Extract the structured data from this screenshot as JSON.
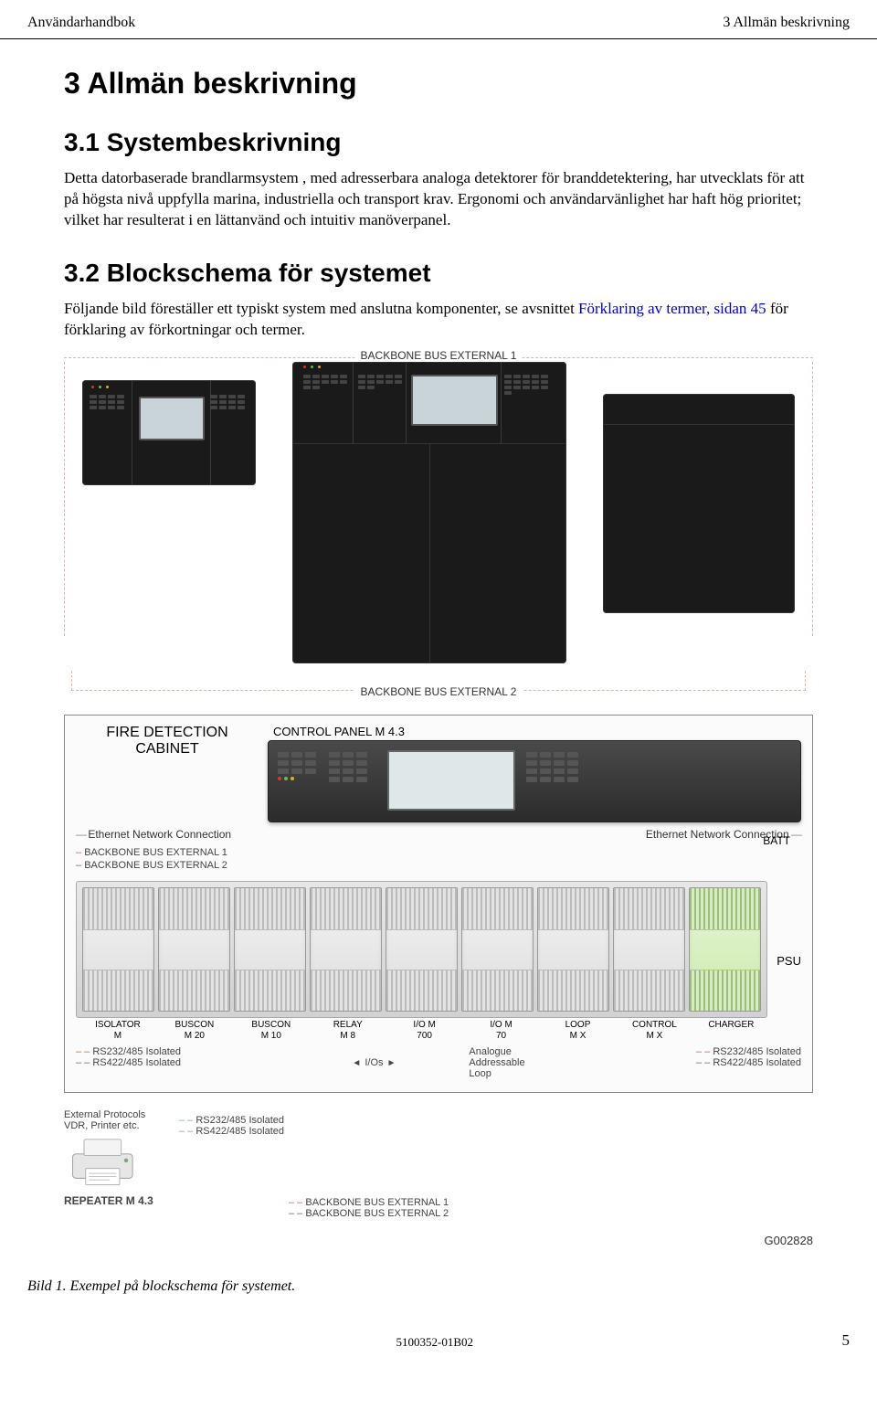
{
  "header": {
    "left": "Användarhandbok",
    "right": "3 Allmän beskrivning"
  },
  "chapter": {
    "title": "3 Allmän beskrivning"
  },
  "section31": {
    "title": "3.1 Systembeskrivning",
    "paragraph": "Detta datorbaserade brandlarmsystem , med adresserbara analoga detektorer för branddetektering, har utvecklats för att på högsta nivå uppfylla marina, industriella och transport krav. Ergonomi och användarvänlighet har haft hög prioritet; vilket har resulterat i en lättanvänd och intuitiv manöverpanel."
  },
  "section32": {
    "title": "3.2 Blockschema för systemet",
    "intro_pre": "Följande bild föreställer ett typiskt system med anslutna komponenter, se avsnittet ",
    "intro_link": "Förklaring av termer, sidan 45",
    "intro_post": " för förklaring av förkortningar och termer."
  },
  "diagram": {
    "backbone_top": "BACKBONE BUS EXTERNAL 1",
    "backbone_bottom": "BACKBONE BUS EXTERNAL 2",
    "fdc_title_l1": "FIRE DETECTION",
    "fdc_title_l2": "CABINET",
    "control_panel_label": "CONTROL PANEL M 4.3",
    "ethernet_left": "Ethernet Network Connection",
    "ethernet_right": "Ethernet Network Connection",
    "batt": "BATT",
    "bb_ext_left_1": "BACKBONE BUS EXTERNAL 1",
    "bb_ext_left_2": "BACKBONE BUS EXTERNAL 2",
    "modules": [
      {
        "l1": "ISOLATOR",
        "l2": "M"
      },
      {
        "l1": "BUSCON",
        "l2": "M 20"
      },
      {
        "l1": "BUSCON",
        "l2": "M 10"
      },
      {
        "l1": "RELAY",
        "l2": "M 8"
      },
      {
        "l1": "I/O M",
        "l2": "700"
      },
      {
        "l1": "I/O M",
        "l2": "70"
      },
      {
        "l1": "LOOP",
        "l2": "M X"
      },
      {
        "l1": "CONTROL",
        "l2": "M X"
      },
      {
        "l1": "CHARGER",
        "l2": ""
      }
    ],
    "psu": "PSU",
    "ios_tag": "I/Os",
    "analogue_l1": "Analogue",
    "analogue_l2": "Addressable",
    "analogue_l3": "Loop",
    "rs232": "RS232/485 Isolated",
    "rs422": "RS422/485 Isolated",
    "ext_protocols_l1": "External Protocols",
    "ext_protocols_l2": "VDR, Printer etc.",
    "repeater": "REPEATER M 4.3",
    "bb_out_1": "BACKBONE BUS EXTERNAL 1",
    "bb_out_2": "BACKBONE BUS EXTERNAL 2",
    "gcode": "G002828",
    "colors": {
      "dash_orange": "#d7b7a9",
      "dash_brown": "#6b6255",
      "cabinet_bg": "#1a1a1a",
      "screen_bg": "#c8d4d8",
      "led_red": "#d23a2a",
      "led_green": "#63c04a",
      "led_amber": "#e2a92e",
      "charger_bg": "#c9e9aa"
    }
  },
  "figure_caption": "Bild 1. Exempel på blockschema för systemet.",
  "footer": {
    "docnum": "5100352-01B02",
    "page": "5"
  }
}
